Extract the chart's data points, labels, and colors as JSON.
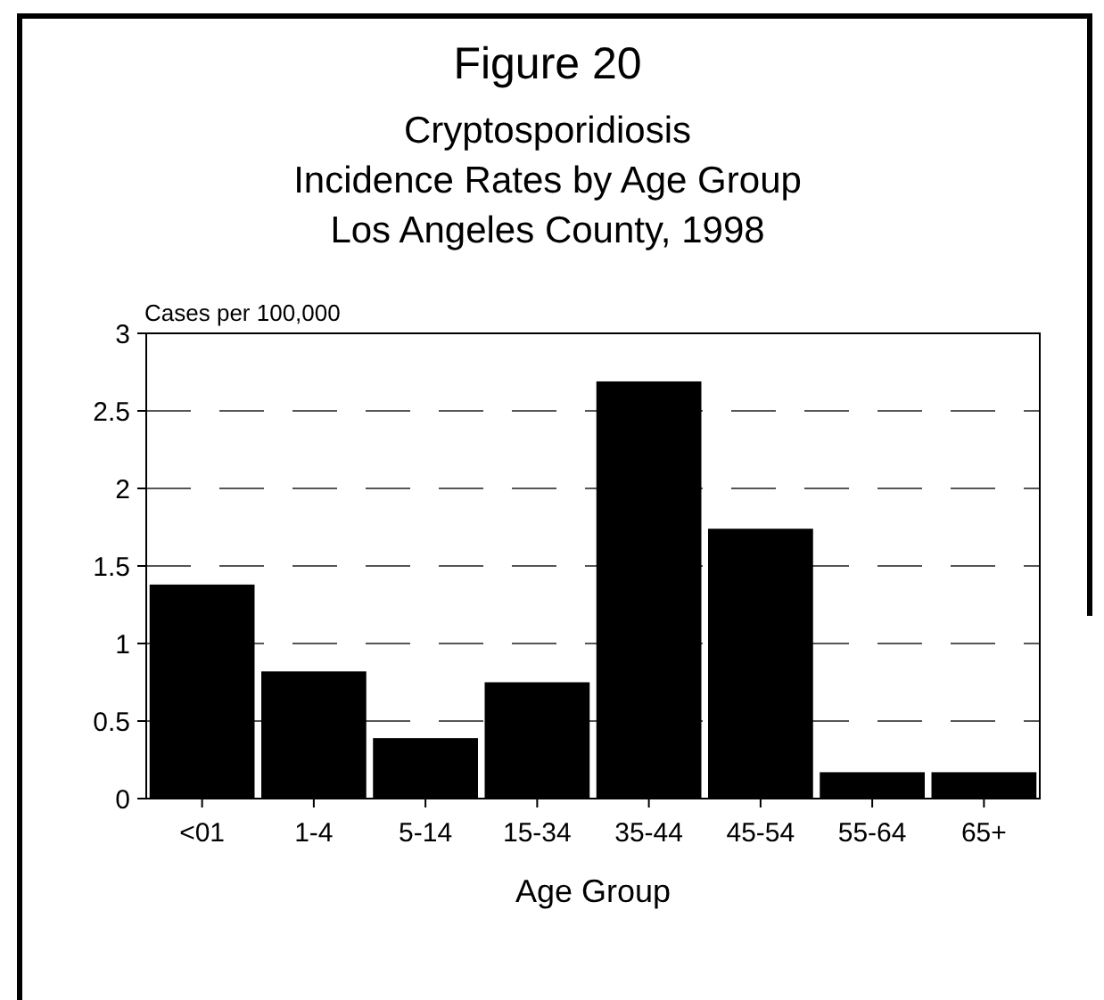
{
  "chart_data": {
    "type": "bar",
    "title": "Figure 20",
    "subtitle": "Cryptosporidiosis\nIncidence Rates by Age Group\nLos Angeles County, 1998",
    "xlabel": "Age Group",
    "ylabel": "Cases per 100,000",
    "categories": [
      "<01",
      "1-4",
      "5-14",
      "15-34",
      "35-44",
      "45-54",
      "55-64",
      "65+"
    ],
    "values": [
      1.38,
      0.82,
      0.39,
      0.75,
      2.69,
      1.74,
      0.17,
      0.17
    ],
    "color": "#000000",
    "ylim": [
      0,
      3
    ],
    "yticks": [
      0,
      0.5,
      1,
      1.5,
      2,
      2.5,
      3
    ],
    "grid": "y"
  }
}
